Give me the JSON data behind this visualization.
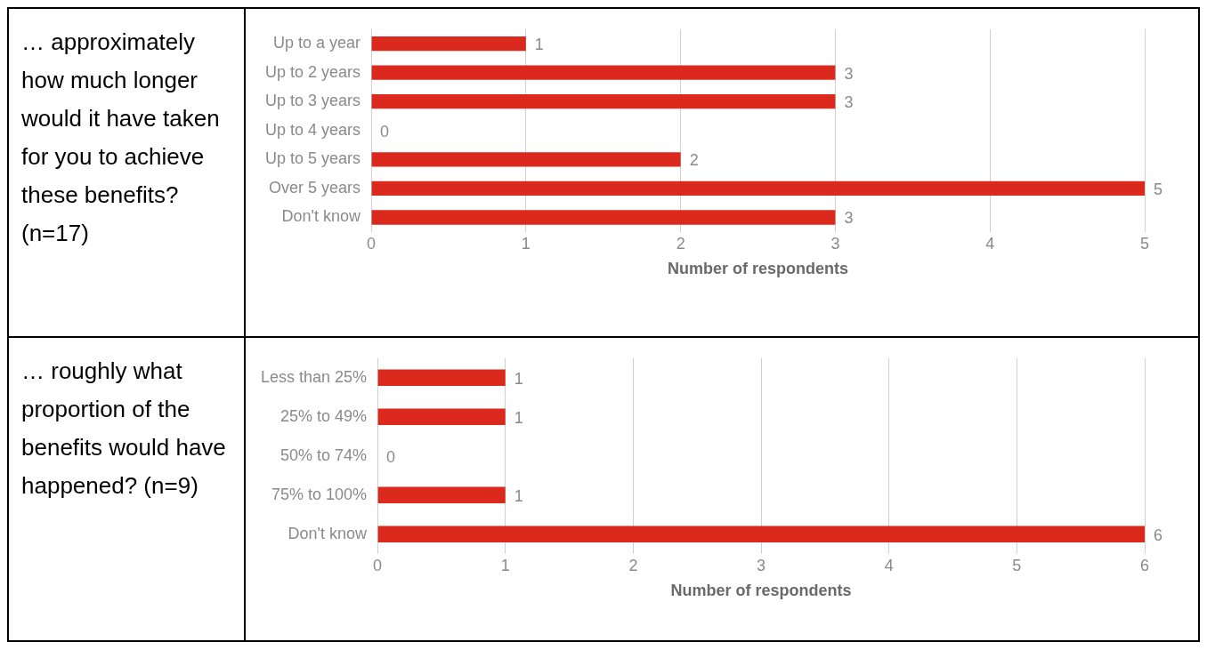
{
  "chart_data": [
    {
      "type": "bar",
      "orientation": "horizontal",
      "title": "… approximately how much longer would it have taken for you to achieve these benefits? (n=17)",
      "categories": [
        "Up to a year",
        "Up to 2 years",
        "Up to 3 years",
        "Up to 4 years",
        "Up to 5 years",
        "Over 5 years",
        "Don't know"
      ],
      "values": [
        1,
        3,
        3,
        0,
        2,
        5,
        3
      ],
      "color": "#dc291e",
      "xlim": [
        0,
        5
      ],
      "xticks": [
        0,
        1,
        2,
        3,
        4,
        5
      ],
      "xlabel": "Number of respondents",
      "grid": "x",
      "data_labels": true
    },
    {
      "type": "bar",
      "orientation": "horizontal",
      "title": "… roughly what proportion of the benefits would have happened? (n=9)",
      "categories": [
        "Less than 25%",
        "25% to 49%",
        "50% to 74%",
        "75% to 100%",
        "Don't know"
      ],
      "values": [
        1,
        1,
        0,
        1,
        6
      ],
      "color": "#dc291e",
      "xlim": [
        0,
        6
      ],
      "xticks": [
        0,
        1,
        2,
        3,
        4,
        5,
        6
      ],
      "xlabel": "Number of respondents",
      "grid": "x",
      "data_labels": true
    }
  ]
}
